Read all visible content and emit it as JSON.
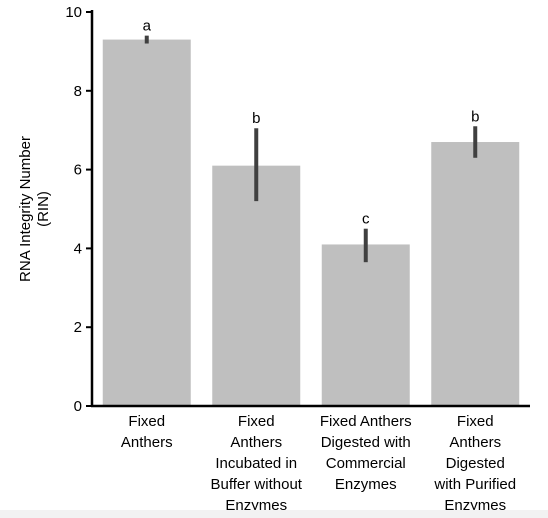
{
  "chart_data": {
    "type": "bar",
    "categories": [
      [
        "Fixed",
        "Anthers"
      ],
      [
        "Fixed",
        "Anthers",
        "Incubated in",
        "Buffer without",
        "Enzymes"
      ],
      [
        "Fixed Anthers",
        "Digested with",
        "Commercial",
        "Enzymes"
      ],
      [
        "Fixed",
        "Anthers",
        "Digested",
        "with Purified",
        "Enzymes"
      ]
    ],
    "values": [
      9.3,
      6.1,
      4.1,
      6.7
    ],
    "error_low": [
      9.2,
      5.2,
      3.65,
      6.3
    ],
    "error_high": [
      9.4,
      7.05,
      4.5,
      7.1
    ],
    "significance_letters": [
      "a",
      "b",
      "c",
      "b"
    ],
    "title": "",
    "xlabel": "",
    "ylabel": [
      "RNA Integrity Number",
      "(RIN)"
    ],
    "ylim": [
      0,
      10
    ],
    "yticks": [
      0,
      2,
      4,
      6,
      8,
      10
    ],
    "grid": false,
    "legend": "none",
    "colors": {
      "bar": "#bfbfbf",
      "error_bar": "#404040",
      "axis": "#000000"
    }
  }
}
